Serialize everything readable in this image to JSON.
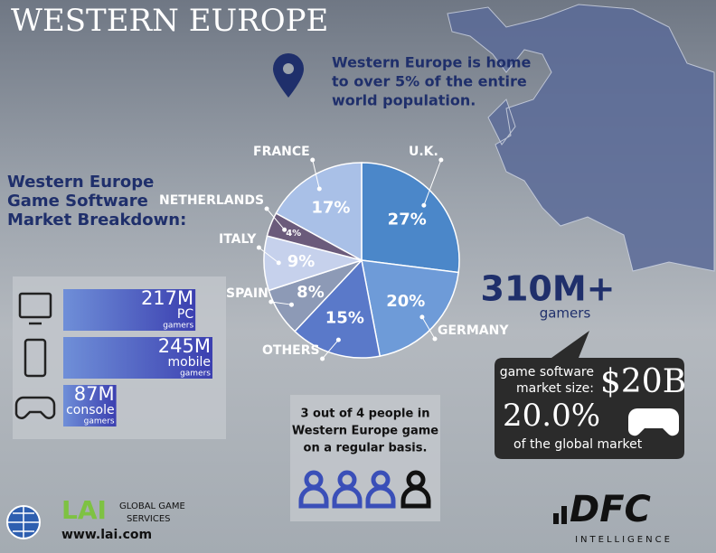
{
  "title": "WESTERN EUROPE",
  "population_note": [
    "Western Europe is home",
    "to over 5% of the entire",
    "world population."
  ],
  "breakdown_title": [
    "Western Europe",
    "Game Software",
    "Market Breakdown:"
  ],
  "chart_data": [
    {
      "type": "pie",
      "categories": [
        "U.K.",
        "GERMANY",
        "OTHERS",
        "SPAIN",
        "ITALY",
        "NETHERLANDS",
        "FRANCE"
      ],
      "values": [
        27,
        20,
        15,
        8,
        9,
        4,
        17
      ],
      "value_labels": [
        "27%",
        "20%",
        "15%",
        "8%",
        "9%",
        "4%",
        "17%"
      ],
      "colors": [
        "#4b87c9",
        "#6e9bd8",
        "#5a79c9",
        "#8d9ab6",
        "#c6d1ec",
        "#6b5b7b",
        "#a9c0e7"
      ]
    },
    {
      "type": "hbar",
      "categories": [
        "PC",
        "mobile",
        "console"
      ],
      "values": [
        217,
        245,
        87
      ],
      "value_labels": [
        "217M",
        "245M",
        "87M"
      ],
      "unit_label": "gamers",
      "color": "#4a5bc6"
    }
  ],
  "gamers_total": "310M+",
  "gamers_word": "gamers",
  "market_size_label": [
    "game software",
    "market size:"
  ],
  "market_size": "$20B",
  "global_share": "20.0%",
  "global_share_note": "of the global market",
  "play_note": [
    "3 out of 4 people in",
    "Western Europe game",
    "on a regular basis."
  ],
  "lai_logo": "LAI",
  "lai_tagline": [
    "GLOBAL GAME",
    "SERVICES"
  ],
  "lai_url": "www.lai.com",
  "dfc_logo": "DFC",
  "dfc_tagline": "INTELLIGENCE"
}
